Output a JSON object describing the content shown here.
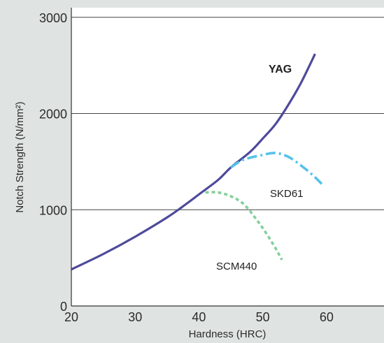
{
  "chart_data": {
    "type": "line",
    "xlabel": "Hardness (HRC)",
    "ylabel": "Notch Strength (N/mm²)",
    "xlim": [
      20,
      69
    ],
    "ylim": [
      0,
      3100
    ],
    "x_ticks": [
      20,
      30,
      40,
      50,
      60
    ],
    "y_ticks": [
      0,
      1000,
      2000,
      3000
    ],
    "grid": "horizontal",
    "series": [
      {
        "name": "YAG",
        "style": "solid",
        "color": "#4e4a9a",
        "x": [
          20,
          25,
          30,
          35,
          38,
          40,
          43,
          45,
          48,
          50,
          52,
          54,
          56,
          58.2
        ],
        "y": [
          380,
          540,
          720,
          920,
          1060,
          1160,
          1310,
          1440,
          1600,
          1740,
          1890,
          2090,
          2320,
          2620
        ]
      },
      {
        "name": "SKD61",
        "style": "dash-dot",
        "color": "#55c2ea",
        "x": [
          45,
          47,
          50,
          52,
          54,
          56,
          58,
          59.5
        ],
        "y": [
          1440,
          1520,
          1570,
          1590,
          1550,
          1460,
          1350,
          1250
        ]
      },
      {
        "name": "SCM440",
        "style": "dashed",
        "color": "#86cf9d",
        "x": [
          41,
          43,
          45,
          47,
          49,
          50.5,
          52,
          53
        ],
        "y": [
          1180,
          1180,
          1140,
          1060,
          900,
          760,
          600,
          480
        ]
      }
    ]
  }
}
